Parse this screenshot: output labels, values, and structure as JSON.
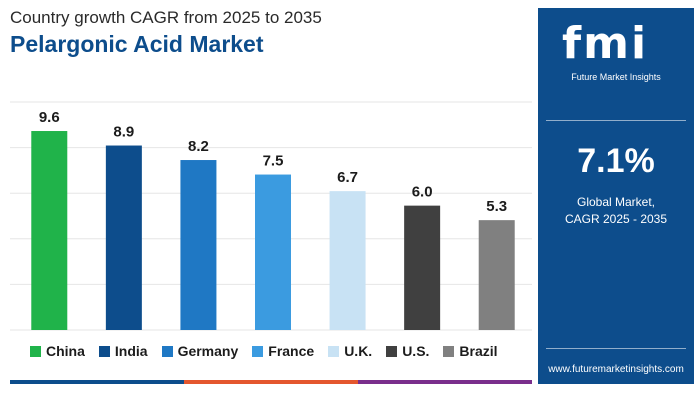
{
  "header": {
    "subtitle": "Country growth CAGR from 2025 to 2035",
    "title": "Pelargonic Acid Market"
  },
  "chart_data": {
    "type": "bar",
    "title": "Pelargonic Acid Market",
    "subtitle": "Country growth CAGR from 2025 to 2035",
    "categories": [
      "China",
      "India",
      "Germany",
      "France",
      "U.K.",
      "U.S.",
      "Brazil"
    ],
    "values": [
      9.6,
      8.9,
      8.2,
      7.5,
      6.7,
      6.0,
      5.3
    ],
    "value_labels": [
      "9.6",
      "8.9",
      "8.2",
      "7.5",
      "6.7",
      "6.0",
      "5.3"
    ],
    "colors": [
      "#20b34a",
      "#0d4d8c",
      "#1f78c4",
      "#3b9be0",
      "#c8e2f4",
      "#404040",
      "#808080"
    ],
    "ylim": [
      0,
      11
    ],
    "grid": true,
    "legend_position": "bottom",
    "xlabel": "",
    "ylabel": ""
  },
  "bottom_bar_colors": [
    "#0d4d8c",
    "#e4572e",
    "#7a2e8c"
  ],
  "side_panel": {
    "logo_text": "fmi",
    "logo_subtitle": "Future Market Insights",
    "kpi_value": "7.1%",
    "kpi_label_line1": "Global Market,",
    "kpi_label_line2": "CAGR 2025 - 2035",
    "website": "www.futuremarketinsights.com",
    "background_color": "#0d4d8c"
  }
}
